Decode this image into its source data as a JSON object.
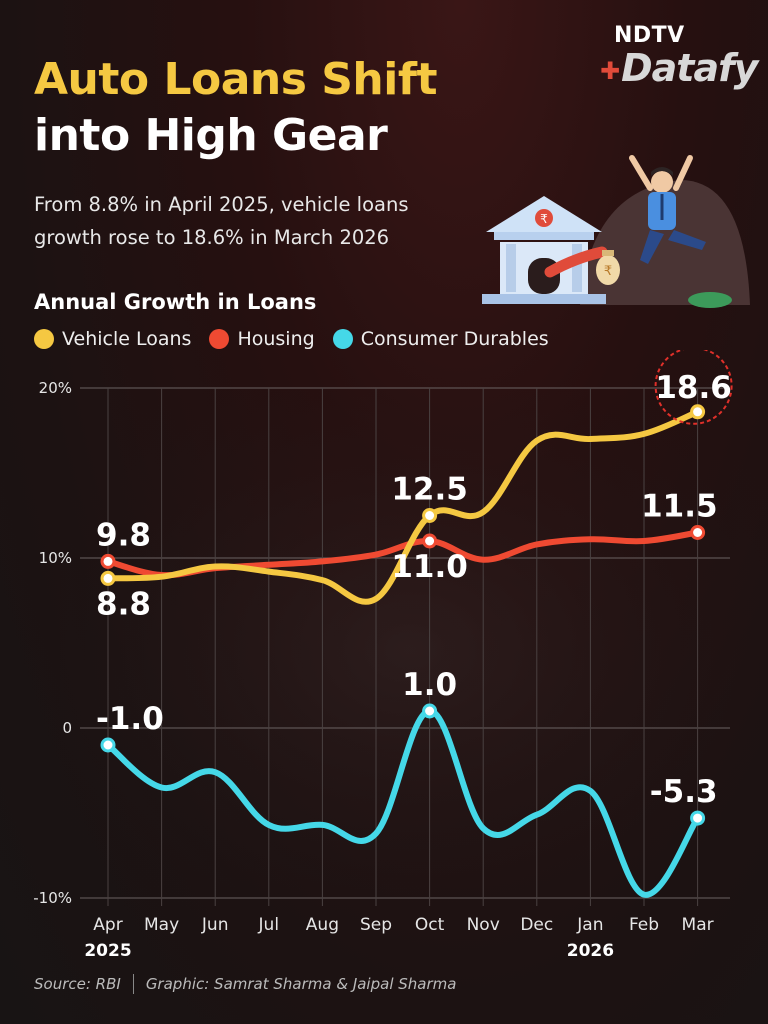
{
  "header": {
    "title_line1": "Auto Loans Shift",
    "title_line2": "into High Gear",
    "subtitle": "From 8.8% in April 2025, vehicle loans growth rose to 18.6% in March 2026",
    "brand_top": "NDTV",
    "brand_bottom": "Datafy"
  },
  "colors": {
    "vehicle": "#f5c842",
    "housing": "#ef4a32",
    "durables": "#45d8e8",
    "title_accent": "#f5c842"
  },
  "illustration": {
    "icon_names": [
      "bank-building-icon",
      "rupee-money-bag-icon",
      "jumping-man-icon"
    ],
    "bank_symbol": "₹",
    "bag_symbol": "₹"
  },
  "chart_data": {
    "type": "line",
    "title": "Annual Growth in Loans",
    "categories": [
      "Apr",
      "May",
      "Jun",
      "Jul",
      "Aug",
      "Sep",
      "Oct",
      "Nov",
      "Dec",
      "Jan",
      "Feb",
      "Mar"
    ],
    "year_labels": [
      {
        "at": "Apr",
        "label": "2025"
      },
      {
        "at": "Jan",
        "label": "2026"
      }
    ],
    "y_ticks": [
      {
        "value": 20,
        "label": "20%"
      },
      {
        "value": 10,
        "label": "10%"
      },
      {
        "value": 0,
        "label": "0"
      },
      {
        "value": -10,
        "label": "-10%"
      }
    ],
    "ylim": [
      -10,
      20
    ],
    "grid": true,
    "legend_position": "top-left",
    "series": [
      {
        "name": "Vehicle Loans",
        "key": "vehicle",
        "values": [
          8.8,
          8.9,
          9.5,
          9.2,
          8.7,
          7.6,
          12.5,
          12.7,
          16.9,
          17.0,
          17.3,
          18.6
        ]
      },
      {
        "name": "Housing",
        "key": "housing",
        "values": [
          9.8,
          9.0,
          9.4,
          9.6,
          9.8,
          10.2,
          11.0,
          9.9,
          10.8,
          11.1,
          11.0,
          11.5
        ]
      },
      {
        "name": "Consumer Durables",
        "key": "durables",
        "values": [
          -1.0,
          -3.5,
          -2.6,
          -5.7,
          -5.7,
          -6.2,
          1.0,
          -5.9,
          -5.1,
          -3.7,
          -9.8,
          -5.3
        ]
      }
    ],
    "data_labels": [
      {
        "series": "housing",
        "index": 0,
        "text": "9.8",
        "position": "above"
      },
      {
        "series": "vehicle",
        "index": 0,
        "text": "8.8",
        "position": "below"
      },
      {
        "series": "vehicle",
        "index": 6,
        "text": "12.5",
        "position": "above"
      },
      {
        "series": "housing",
        "index": 6,
        "text": "11.0",
        "position": "below"
      },
      {
        "series": "vehicle",
        "index": 11,
        "text": "18.6",
        "position": "above",
        "highlight": true
      },
      {
        "series": "housing",
        "index": 11,
        "text": "11.5",
        "position": "above"
      },
      {
        "series": "durables",
        "index": 0,
        "text": "-1.0",
        "position": "above"
      },
      {
        "series": "durables",
        "index": 6,
        "text": "1.0",
        "position": "above"
      },
      {
        "series": "durables",
        "index": 11,
        "text": "-5.3",
        "position": "above"
      }
    ]
  },
  "footer": {
    "source": "Source: RBI",
    "credit": "Graphic: Samrat Sharma & Jaipal Sharma"
  }
}
